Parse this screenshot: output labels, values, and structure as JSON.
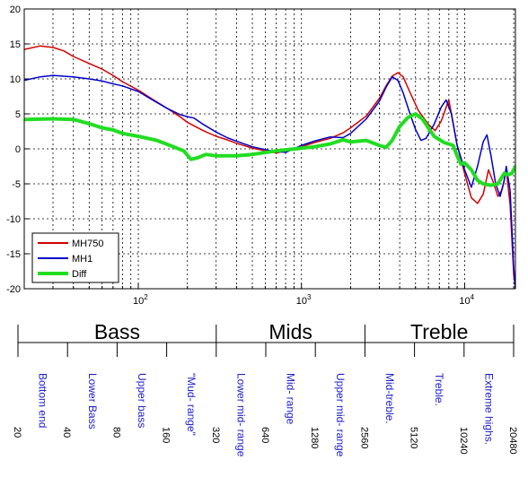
{
  "chart_data": {
    "type": "line",
    "xscale": "log",
    "xlim": [
      20,
      20480
    ],
    "ylim": [
      -20,
      20
    ],
    "grid": true,
    "legend_position": "bottom-left",
    "yticks": [
      "-20",
      "-15",
      "-10",
      "-5",
      "0",
      "5",
      "10",
      "15",
      "20"
    ],
    "xticks": [
      {
        "base": "10",
        "exp": "2",
        "value": 100
      },
      {
        "base": "10",
        "exp": "3",
        "value": 1000
      },
      {
        "base": "10",
        "exp": "4",
        "value": 10000
      }
    ],
    "series": [
      {
        "name": "MH750",
        "color": "#d40000",
        "width": 1.5,
        "points": [
          [
            20,
            14.2
          ],
          [
            25,
            14.7
          ],
          [
            30,
            14.5
          ],
          [
            35,
            14.0
          ],
          [
            40,
            13.2
          ],
          [
            50,
            12.2
          ],
          [
            60,
            11.4
          ],
          [
            70,
            10.5
          ],
          [
            80,
            9.6
          ],
          [
            100,
            8.4
          ],
          [
            120,
            7.2
          ],
          [
            150,
            5.8
          ],
          [
            180,
            4.6
          ],
          [
            200,
            3.8
          ],
          [
            250,
            2.6
          ],
          [
            300,
            1.8
          ],
          [
            350,
            1.3
          ],
          [
            400,
            0.8
          ],
          [
            500,
            0.1
          ],
          [
            600,
            -0.3
          ],
          [
            700,
            -0.6
          ],
          [
            800,
            -0.3
          ],
          [
            900,
            0.1
          ],
          [
            1000,
            0.3
          ],
          [
            1200,
            0.9
          ],
          [
            1500,
            1.5
          ],
          [
            1800,
            2.3
          ],
          [
            2000,
            3.0
          ],
          [
            2500,
            4.7
          ],
          [
            3000,
            7.2
          ],
          [
            3300,
            9.0
          ],
          [
            3600,
            10.4
          ],
          [
            3900,
            10.9
          ],
          [
            4200,
            10.3
          ],
          [
            4600,
            8.2
          ],
          [
            5200,
            5.5
          ],
          [
            6000,
            3.5
          ],
          [
            6600,
            2.6
          ],
          [
            7200,
            4.0
          ],
          [
            8000,
            7.0
          ],
          [
            8300,
            5.0
          ],
          [
            9000,
            0.5
          ],
          [
            10000,
            -3.5
          ],
          [
            11000,
            -7.0
          ],
          [
            12000,
            -7.8
          ],
          [
            13000,
            -6.5
          ],
          [
            14000,
            -3.0
          ],
          [
            15000,
            -4.8
          ],
          [
            16000,
            -6.8
          ],
          [
            17000,
            -5.8
          ],
          [
            18000,
            -3.0
          ],
          [
            19000,
            -8.0
          ],
          [
            20000,
            -18
          ],
          [
            20480,
            -20
          ]
        ]
      },
      {
        "name": "MH1",
        "color": "#0000c8",
        "width": 1.5,
        "points": [
          [
            20,
            9.8
          ],
          [
            25,
            10.3
          ],
          [
            30,
            10.5
          ],
          [
            40,
            10.3
          ],
          [
            50,
            10.0
          ],
          [
            60,
            9.7
          ],
          [
            70,
            9.3
          ],
          [
            80,
            9.0
          ],
          [
            100,
            8.2
          ],
          [
            120,
            7.1
          ],
          [
            150,
            5.8
          ],
          [
            180,
            4.9
          ],
          [
            200,
            4.6
          ],
          [
            220,
            4.4
          ],
          [
            250,
            3.5
          ],
          [
            300,
            2.4
          ],
          [
            350,
            1.6
          ],
          [
            400,
            1.1
          ],
          [
            500,
            0.3
          ],
          [
            600,
            -0.1
          ],
          [
            700,
            -0.4
          ],
          [
            800,
            -0.5
          ],
          [
            900,
            0.0
          ],
          [
            1000,
            0.5
          ],
          [
            1200,
            1.1
          ],
          [
            1500,
            1.7
          ],
          [
            1800,
            1.6
          ],
          [
            2000,
            2.2
          ],
          [
            2500,
            4.3
          ],
          [
            3000,
            6.8
          ],
          [
            3300,
            8.8
          ],
          [
            3600,
            10.3
          ],
          [
            3900,
            9.8
          ],
          [
            4200,
            8.0
          ],
          [
            4600,
            5.2
          ],
          [
            5000,
            2.8
          ],
          [
            5400,
            1.2
          ],
          [
            5800,
            1.5
          ],
          [
            6500,
            3.5
          ],
          [
            7200,
            6.0
          ],
          [
            7700,
            7.0
          ],
          [
            8300,
            5.0
          ],
          [
            9000,
            0.5
          ],
          [
            10000,
            -3.0
          ],
          [
            11000,
            -5.5
          ],
          [
            12000,
            -2.5
          ],
          [
            13000,
            1.0
          ],
          [
            13700,
            2.0
          ],
          [
            14500,
            -1.0
          ],
          [
            15500,
            -5.0
          ],
          [
            16500,
            -6.8
          ],
          [
            17500,
            -4.5
          ],
          [
            18000,
            -2.5
          ],
          [
            19000,
            -6.0
          ],
          [
            20000,
            -17
          ],
          [
            20480,
            -20
          ]
        ]
      },
      {
        "name": "Diff",
        "color": "#22dd22",
        "width": 4,
        "points": [
          [
            20,
            4.2
          ],
          [
            30,
            4.3
          ],
          [
            40,
            4.2
          ],
          [
            50,
            3.6
          ],
          [
            60,
            3.0
          ],
          [
            70,
            2.7
          ],
          [
            80,
            2.2
          ],
          [
            100,
            1.8
          ],
          [
            130,
            1.2
          ],
          [
            160,
            0.4
          ],
          [
            190,
            -0.3
          ],
          [
            210,
            -1.5
          ],
          [
            230,
            -1.3
          ],
          [
            260,
            -0.8
          ],
          [
            300,
            -1.0
          ],
          [
            400,
            -1.0
          ],
          [
            500,
            -0.8
          ],
          [
            700,
            -0.3
          ],
          [
            1000,
            0.1
          ],
          [
            1200,
            0.3
          ],
          [
            1500,
            0.7
          ],
          [
            1800,
            1.3
          ],
          [
            2000,
            1.0
          ],
          [
            2500,
            1.2
          ],
          [
            3000,
            0.5
          ],
          [
            3300,
            0.2
          ],
          [
            3600,
            1.2
          ],
          [
            4000,
            3.2
          ],
          [
            4500,
            4.5
          ],
          [
            5000,
            5.0
          ],
          [
            5500,
            4.3
          ],
          [
            6000,
            3.0
          ],
          [
            6500,
            1.8
          ],
          [
            7500,
            0.9
          ],
          [
            8500,
            0.5
          ],
          [
            9000,
            -1.0
          ],
          [
            9500,
            -2.2
          ],
          [
            10000,
            -2.0
          ],
          [
            11000,
            -3.0
          ],
          [
            12000,
            -4.5
          ],
          [
            13000,
            -5.0
          ],
          [
            14500,
            -5.2
          ],
          [
            16000,
            -5.0
          ],
          [
            17500,
            -3.5
          ],
          [
            18500,
            -3.7
          ],
          [
            19500,
            -3.5
          ],
          [
            20480,
            -2.5
          ]
        ]
      }
    ],
    "bands": {
      "xlim": [
        20,
        20480
      ],
      "groups": [
        {
          "label": "Bass",
          "from": 20,
          "to": 320
        },
        {
          "label": "Mids",
          "from": 320,
          "to": 2560
        },
        {
          "label": "Treble",
          "from": 2560,
          "to": 20480
        }
      ],
      "octave_ticks": [
        {
          "value": 20,
          "label": "20"
        },
        {
          "value": 40,
          "label": "40"
        },
        {
          "value": 80,
          "label": "80"
        },
        {
          "value": 160,
          "label": "160"
        },
        {
          "value": 320,
          "label": "320"
        },
        {
          "value": 640,
          "label": "640"
        },
        {
          "value": 1280,
          "label": "1280"
        },
        {
          "value": 2560,
          "label": "2560"
        },
        {
          "value": 5120,
          "label": "5120"
        },
        {
          "value": 10240,
          "label": "10240"
        },
        {
          "value": 20480,
          "label": "20480"
        }
      ],
      "ranges": [
        {
          "lines": [
            "Bottom end"
          ],
          "from": 20,
          "to": 40
        },
        {
          "lines": [
            "Lower Bass"
          ],
          "from": 40,
          "to": 80
        },
        {
          "lines": [
            "Upper bass"
          ],
          "from": 80,
          "to": 160
        },
        {
          "lines": [
            "\"Mud- range\""
          ],
          "from": 160,
          "to": 320
        },
        {
          "lines": [
            "Lower mid- range"
          ],
          "from": 320,
          "to": 640
        },
        {
          "lines": [
            "Mid- range"
          ],
          "from": 640,
          "to": 1280
        },
        {
          "lines": [
            "Upper mid- range"
          ],
          "from": 1280,
          "to": 2560
        },
        {
          "lines": [
            "Mid-treble."
          ],
          "from": 2560,
          "to": 5120
        },
        {
          "lines": [
            "Treble."
          ],
          "from": 5120,
          "to": 10240
        },
        {
          "lines": [
            "Extreme highs."
          ],
          "from": 10240,
          "to": 20480
        }
      ],
      "label_color": "#2020cc",
      "tick_label_color": "#000000"
    }
  }
}
